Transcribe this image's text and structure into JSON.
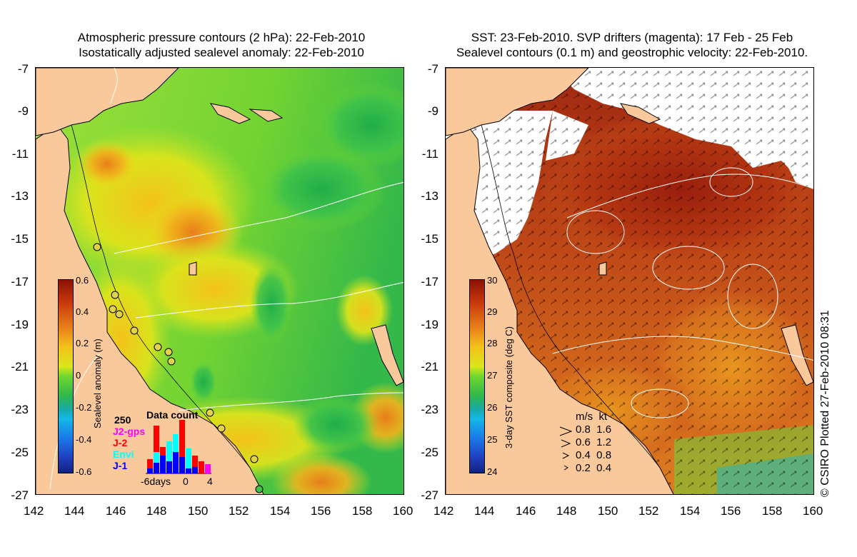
{
  "left_panel": {
    "title_line1": "Atmospheric pressure contours (2 hPa): 22-Feb-2010",
    "title_line2": "Isostatically adjusted sealevel anomaly: 22-Feb-2010",
    "colorbar_label": "Sealevel anomaly (m)",
    "colorbar_ticks": [
      "0.6",
      "0.4",
      "0.2",
      "0",
      "-0.2",
      "-0.4",
      "-0.6"
    ],
    "data_count": {
      "title": "Data count",
      "ymax_label": "250",
      "series_labels": [
        {
          "label": "J2-gps",
          "color": "#ff00ff"
        },
        {
          "label": "J-2",
          "color": "#ff0000"
        },
        {
          "label": "Envi",
          "color": "#00ffff"
        },
        {
          "label": "J-1",
          "color": "#0000ff"
        }
      ],
      "x_labels": [
        "-6days",
        "0",
        "4"
      ]
    }
  },
  "right_panel": {
    "title_line1": "SST: 23-Feb-2010. SVP drifters (magenta): 17 Feb - 25 Feb",
    "title_line2": "Sealevel contours (0.1 m) and geostrophic velocity: 22-Feb-2010.",
    "colorbar_label": "3-day SST composite (deg C)",
    "colorbar_ticks": [
      "30",
      "29",
      "28",
      "27",
      "26",
      "25",
      "24"
    ],
    "velocity_legend": {
      "header": "m/s  kt",
      "rows": [
        "0.8  1.6",
        "0.6  1.2",
        "0.4  0.8",
        "0.2  0.4"
      ]
    }
  },
  "axes": {
    "x_ticks": [
      "142",
      "144",
      "146",
      "148",
      "150",
      "152",
      "154",
      "156",
      "158",
      "160"
    ],
    "y_ticks": [
      "-7",
      "-9",
      "-11",
      "-13",
      "-15",
      "-17",
      "-19",
      "-21",
      "-23",
      "-25",
      "-27"
    ]
  },
  "credit": "© CSIRO Plotted 27-Feb-2010 08:31",
  "colors": {
    "land": "#f9c89b",
    "sla_green": "#6fd631",
    "sla_yellow": "#e7e616",
    "sst_red": "#a82b10",
    "sst_orange": "#d9741e"
  }
}
